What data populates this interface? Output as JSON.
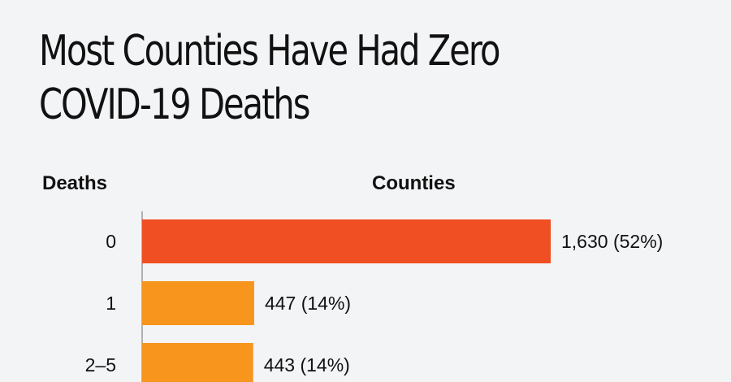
{
  "title_lines": [
    "Most Counties Have Had Zero",
    "COVID-19 Deaths"
  ],
  "column_headers": {
    "deaths": "Deaths",
    "counties": "Counties"
  },
  "colors": {
    "highlight": "#f04e23",
    "bar": "#f7951d",
    "axis": "#9a9a9a",
    "text": "#111111",
    "background": "#f3f4f6"
  },
  "chart_data": {
    "type": "bar",
    "orientation": "horizontal",
    "title": "Most Counties Have Had Zero COVID-19 Deaths",
    "xlabel": "Counties",
    "ylabel": "Deaths",
    "categories": [
      "0",
      "1",
      "2–5"
    ],
    "values": [
      1630,
      447,
      443
    ],
    "labels": [
      "1,630 (52%)",
      "447 (14%)",
      "443 (14%)"
    ],
    "highlight_index": 0
  }
}
